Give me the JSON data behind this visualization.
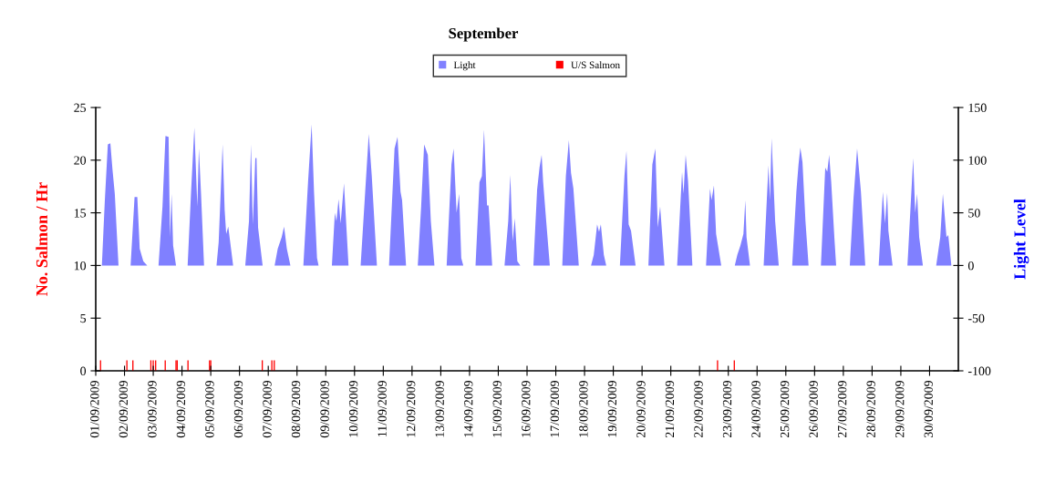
{
  "chart_data": {
    "type": "bar",
    "title": "September",
    "ylabel": "No. Salmon / Hr",
    "y2label": "Light Level",
    "legend": "top",
    "xlim": [
      "2009-09-01",
      "2009-10-01"
    ],
    "xticks": [
      {
        "value": "2009-09-01",
        "label": "01/09/2009"
      },
      {
        "value": "2009-09-02",
        "label": "02/09/2009"
      },
      {
        "value": "2009-09-03",
        "label": "03/09/2009"
      },
      {
        "value": "2009-09-04",
        "label": "04/09/2009"
      },
      {
        "value": "2009-09-05",
        "label": "05/09/2009"
      },
      {
        "value": "2009-09-06",
        "label": "06/09/2009"
      },
      {
        "value": "2009-09-07",
        "label": "07/09/2009"
      },
      {
        "value": "2009-09-08",
        "label": "08/09/2009"
      },
      {
        "value": "2009-09-09",
        "label": "09/09/2009"
      },
      {
        "value": "2009-09-10",
        "label": "10/09/2009"
      },
      {
        "value": "2009-09-11",
        "label": "11/09/2009"
      },
      {
        "value": "2009-09-12",
        "label": "12/09/2009"
      },
      {
        "value": "2009-09-13",
        "label": "13/09/2009"
      },
      {
        "value": "2009-09-14",
        "label": "14/09/2009"
      },
      {
        "value": "2009-09-15",
        "label": "15/09/2009"
      },
      {
        "value": "2009-09-16",
        "label": "16/09/2009"
      },
      {
        "value": "2009-09-17",
        "label": "17/09/2009"
      },
      {
        "value": "2009-09-18",
        "label": "18/09/2009"
      },
      {
        "value": "2009-09-19",
        "label": "19/09/2009"
      },
      {
        "value": "2009-09-20",
        "label": "20/09/2009"
      },
      {
        "value": "2009-09-21",
        "label": "21/09/2009"
      },
      {
        "value": "2009-09-22",
        "label": "22/09/2009"
      },
      {
        "value": "2009-09-23",
        "label": "23/09/2009"
      },
      {
        "value": "2009-09-24",
        "label": "24/09/2009"
      },
      {
        "value": "2009-09-25",
        "label": "25/09/2009"
      },
      {
        "value": "2009-09-26",
        "label": "26/09/2009"
      },
      {
        "value": "2009-09-27",
        "label": "27/09/2009"
      },
      {
        "value": "2009-09-28",
        "label": "28/09/2009"
      },
      {
        "value": "2009-09-29",
        "label": "29/09/2009"
      },
      {
        "value": "2009-09-30",
        "label": "30/09/2009"
      }
    ],
    "ylim": [
      0,
      25
    ],
    "yticks": [
      0,
      5,
      10,
      15,
      20,
      25
    ],
    "y2lim": [
      -100,
      150
    ],
    "y2ticks": [
      -100,
      -50,
      0,
      50,
      100,
      150
    ],
    "series": [
      {
        "name": "Light",
        "type": "area",
        "axis": "y2",
        "color": "#8080ff",
        "x": [
          "2009-09-01T05:06",
          "2009-09-01T07:36",
          "2009-09-01T10:06",
          "2009-09-01T12:12",
          "2009-09-01T13:54",
          "2009-09-01T15:54",
          "2009-09-01T19:00",
          "2009-09-02T05:06",
          "2009-09-02T08:24",
          "2009-09-02T10:42",
          "2009-09-02T12:42",
          "2009-09-02T15:42",
          "2009-09-02T19:00",
          "2009-09-03T04:24",
          "2009-09-03T07:42",
          "2009-09-03T10:12",
          "2009-09-03T12:48",
          "2009-09-03T14:00",
          "2009-09-03T15:18",
          "2009-09-03T16:36",
          "2009-09-03T19:00",
          "2009-09-04T04:42",
          "2009-09-04T07:42",
          "2009-09-04T10:18",
          "2009-09-04T12:48",
          "2009-09-04T14:06",
          "2009-09-04T15:54",
          "2009-09-04T18:24",
          "2009-09-05T04:48",
          "2009-09-05T06:36",
          "2009-09-05T09:54",
          "2009-09-05T11:36",
          "2009-09-05T12:54",
          "2009-09-05T14:36",
          "2009-09-05T18:42",
          "2009-09-06T04:48",
          "2009-09-06T07:54",
          "2009-09-06T09:36",
          "2009-09-06T11:06",
          "2009-09-06T13:12",
          "2009-09-06T14:12",
          "2009-09-06T15:30",
          "2009-09-06T19:18",
          "2009-09-07T05:18",
          "2009-09-07T07:54",
          "2009-09-07T11:12",
          "2009-09-07T13:12",
          "2009-09-07T15:30",
          "2009-09-07T18:30",
          "2009-09-08T05:18",
          "2009-09-08T09:12",
          "2009-09-08T12:12",
          "2009-09-08T14:12",
          "2009-09-08T16:42",
          "2009-09-08T18:00",
          "2009-09-09T05:06",
          "2009-09-09T07:36",
          "2009-09-09T08:54",
          "2009-09-09T10:42",
          "2009-09-09T12:24",
          "2009-09-09T15:12",
          "2009-09-09T19:00",
          "2009-09-10T05:06",
          "2009-09-10T08:54",
          "2009-09-10T11:54",
          "2009-09-10T14:24",
          "2009-09-10T18:42",
          "2009-09-11T04:48",
          "2009-09-11T09:24",
          "2009-09-11T11:54",
          "2009-09-11T14:24",
          "2009-09-11T15:42",
          "2009-09-11T19:00",
          "2009-09-12T04:48",
          "2009-09-12T07:36",
          "2009-09-12T10:06",
          "2009-09-12T13:12",
          "2009-09-12T15:42",
          "2009-09-12T18:42",
          "2009-09-13T04:54",
          "2009-09-13T08:54",
          "2009-09-13T10:42",
          "2009-09-13T13:12",
          "2009-09-13T15:18",
          "2009-09-13T17:06",
          "2009-09-13T18:48",
          "2009-09-14T05:00",
          "2009-09-14T08:18",
          "2009-09-14T10:18",
          "2009-09-14T12:06",
          "2009-09-14T14:36",
          "2009-09-14T15:54",
          "2009-09-14T18:54",
          "2009-09-15T05:12",
          "2009-09-15T08:18",
          "2009-09-15T10:00",
          "2009-09-15T12:00",
          "2009-09-15T13:48",
          "2009-09-15T15:54",
          "2009-09-15T18:24",
          "2009-09-16T05:18",
          "2009-09-16T08:24",
          "2009-09-16T10:24",
          "2009-09-16T12:12",
          "2009-09-16T13:24",
          "2009-09-16T16:00",
          "2009-09-16T19:00",
          "2009-09-17T05:24",
          "2009-09-17T08:24",
          "2009-09-17T10:54",
          "2009-09-17T12:42",
          "2009-09-17T14:42",
          "2009-09-17T19:12",
          "2009-09-18T05:24",
          "2009-09-18T07:42",
          "2009-09-18T10:30",
          "2009-09-18T12:06",
          "2009-09-18T13:36",
          "2009-09-18T16:06",
          "2009-09-18T18:06",
          "2009-09-19T05:30",
          "2009-09-19T09:18",
          "2009-09-19T11:00",
          "2009-09-19T12:48",
          "2009-09-19T14:48",
          "2009-09-19T18:36",
          "2009-09-20T05:18",
          "2009-09-20T08:36",
          "2009-09-20T11:06",
          "2009-09-20T13:06",
          "2009-09-20T15:06",
          "2009-09-20T18:42",
          "2009-09-21T05:18",
          "2009-09-21T09:24",
          "2009-09-21T10:36",
          "2009-09-21T12:24",
          "2009-09-21T14:24",
          "2009-09-21T18:00",
          "2009-09-22T05:24",
          "2009-09-22T08:42",
          "2009-09-22T10:00",
          "2009-09-22T12:00",
          "2009-09-22T13:48",
          "2009-09-22T18:06",
          "2009-09-23T05:24",
          "2009-09-23T07:30",
          "2009-09-23T10:06",
          "2009-09-23T12:36",
          "2009-09-23T14:12",
          "2009-09-23T15:12",
          "2009-09-23T18:06",
          "2009-09-24T05:30",
          "2009-09-24T09:30",
          "2009-09-24T10:48",
          "2009-09-24T12:06",
          "2009-09-24T15:06",
          "2009-09-24T18:06",
          "2009-09-25T05:18",
          "2009-09-25T08:48",
          "2009-09-25T10:36",
          "2009-09-25T12:06",
          "2009-09-25T13:54",
          "2009-09-25T16:24",
          "2009-09-25T19:00",
          "2009-09-26T05:18",
          "2009-09-26T08:54",
          "2009-09-26T10:36",
          "2009-09-26T12:12",
          "2009-09-26T13:54",
          "2009-09-26T16:30",
          "2009-09-26T18:00",
          "2009-09-27T05:24",
          "2009-09-27T08:24",
          "2009-09-27T11:30",
          "2009-09-27T14:42",
          "2009-09-27T18:18",
          "2009-09-28T05:30",
          "2009-09-28T09:00",
          "2009-09-28T10:48",
          "2009-09-28T12:36",
          "2009-09-28T13:36",
          "2009-09-28T17:06",
          "2009-09-29T05:30",
          "2009-09-29T10:18",
          "2009-09-29T12:00",
          "2009-09-29T13:36",
          "2009-09-29T15:18",
          "2009-09-29T18:24",
          "2009-09-30T05:30",
          "2009-09-30T08:54",
          "2009-09-30T11:06",
          "2009-09-30T14:06",
          "2009-09-30T15:36",
          "2009-09-30T18:12"
        ],
        "values": [
          0,
          62,
          115,
          116,
          92,
          68,
          0,
          0,
          65,
          65,
          16,
          4,
          0,
          0,
          56,
          123,
          122,
          27,
          68,
          19,
          0,
          0,
          73,
          131,
          56,
          111,
          68,
          0,
          0,
          22,
          115,
          53,
          30,
          37,
          0,
          0,
          42,
          115,
          39,
          102,
          102,
          36,
          0,
          0,
          16,
          27,
          37,
          16,
          0,
          0,
          79,
          134,
          70,
          7,
          0,
          0,
          50,
          42,
          63,
          40,
          78,
          0,
          0,
          70,
          125,
          85,
          0,
          0,
          111,
          122,
          70,
          62,
          0,
          0,
          56,
          115,
          105,
          42,
          0,
          0,
          96,
          111,
          50,
          68,
          7,
          0,
          0,
          79,
          85,
          129,
          57,
          57,
          0,
          0,
          42,
          86,
          23,
          45,
          4,
          0,
          0,
          72,
          93,
          105,
          80,
          42,
          0,
          0,
          85,
          119,
          88,
          73,
          0,
          0,
          10,
          39,
          32,
          39,
          10,
          0,
          0,
          85,
          109,
          39,
          33,
          0,
          0,
          96,
          111,
          36,
          56,
          0,
          0,
          89,
          68,
          105,
          80,
          0,
          0,
          73,
          62,
          76,
          30,
          0,
          0,
          10,
          19,
          30,
          62,
          27,
          0,
          0,
          95,
          62,
          121,
          42,
          0,
          0,
          70,
          96,
          112,
          98,
          42,
          0,
          0,
          93,
          89,
          105,
          79,
          27,
          0,
          0,
          62,
          111,
          70,
          0,
          0,
          70,
          40,
          69,
          33,
          0,
          0,
          102,
          50,
          68,
          27,
          0,
          0,
          27,
          68,
          27,
          29,
          0
        ]
      },
      {
        "name": "U/S Salmon",
        "axis": "y",
        "color": "#ff0000",
        "x": [
          "2009-09-01T04:00",
          "2009-09-02T02:00",
          "2009-09-02T07:00",
          "2009-09-02T22:00",
          "2009-09-03T00:00",
          "2009-09-03T02:00",
          "2009-09-03T10:00",
          "2009-09-03T19:00",
          "2009-09-03T20:00",
          "2009-09-04T05:00",
          "2009-09-04T23:00",
          "2009-09-05T00:00",
          "2009-09-06T19:00",
          "2009-09-07T03:00",
          "2009-09-07T05:00",
          "2009-09-22T15:00",
          "2009-09-23T05:00"
        ],
        "values": [
          1,
          1,
          1,
          1,
          1,
          1,
          1,
          1,
          1,
          1,
          1,
          1,
          1,
          1,
          1,
          1,
          1
        ]
      }
    ]
  }
}
